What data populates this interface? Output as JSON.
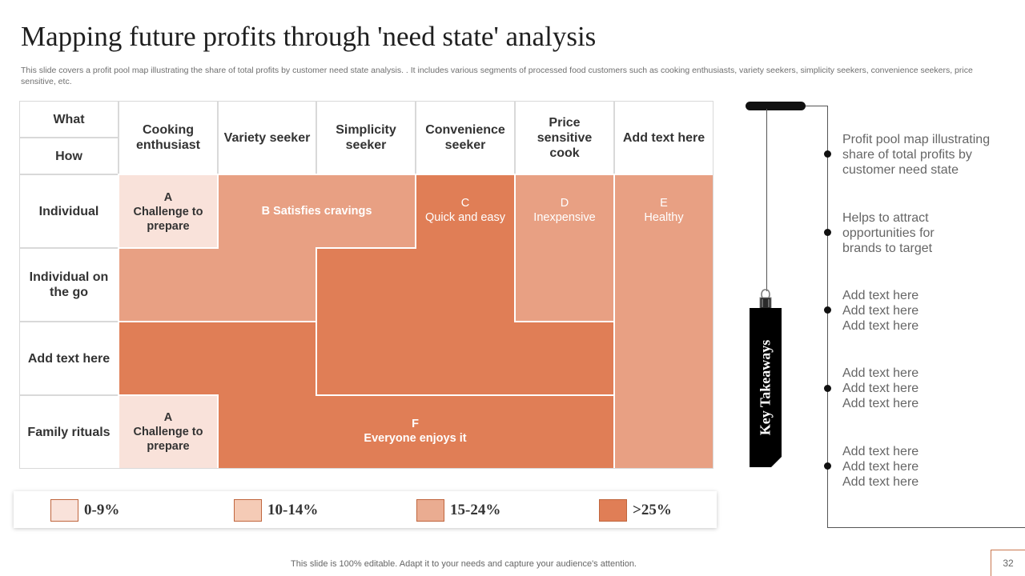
{
  "slide": {
    "title": "Mapping future profits through 'need state' analysis",
    "subtitle": "This slide covers a profit pool map illustrating the share of total profits by customer need state analysis. . It includes various segments of processed food customers such as cooking enthusiasts, variety seekers, simplicity seekers, convenience seekers, price sensitive, etc.",
    "footer": "This slide is 100% editable. Adapt it to your needs and capture your audience's attention.",
    "page_number": "32"
  },
  "colors": {
    "lightest": "#f9e2da",
    "light": "#f5cbb6",
    "medium": "#e8a083",
    "dark": "#e07e56",
    "tag_bg": "#000000",
    "border": "#d9d9d9"
  },
  "grid": {
    "what_label": "What",
    "how_label": "How",
    "columns": [
      "Cooking enthusiast",
      "Variety seeker",
      "Simplicity seeker",
      "Convenience seeker",
      "Price sensitive cook",
      "Add text here"
    ],
    "rows": [
      "Individual",
      "Individual on the go",
      "Add text here",
      "Family rituals"
    ],
    "regions": {
      "a_top": {
        "letter": "A",
        "text": "Challenge to prepare"
      },
      "b": {
        "text": "B Satisfies cravings"
      },
      "c": {
        "letter": "C",
        "text": "Quick and easy"
      },
      "d": {
        "letter": "D",
        "text": "Inexpensive"
      },
      "e": {
        "letter": "E",
        "text": "Healthy"
      },
      "a_bottom": {
        "letter": "A",
        "text": "Challenge to prepare"
      },
      "f": {
        "letter": "F",
        "text": "Everyone enjoys it"
      }
    }
  },
  "legend": [
    {
      "label": "0-9%",
      "color": "#f9e2da"
    },
    {
      "label": "10-14%",
      "color": "#f5cbb6"
    },
    {
      "label": "15-24%",
      "color": "#eaac91"
    },
    {
      "label": ">25%",
      "color": "#e07e56"
    }
  ],
  "takeaways": {
    "tag_label": "Key Takeaways",
    "items": [
      [
        "Profit pool map illustrating",
        "share of total profits by",
        "customer need state"
      ],
      [
        "Helps to attract",
        "opportunities for",
        "brands to target"
      ],
      [
        "Add text here",
        "Add text here",
        "Add text here"
      ],
      [
        "Add text here",
        "Add text here",
        "Add text here"
      ],
      [
        "Add text here",
        "Add text here",
        "Add text here"
      ]
    ]
  }
}
